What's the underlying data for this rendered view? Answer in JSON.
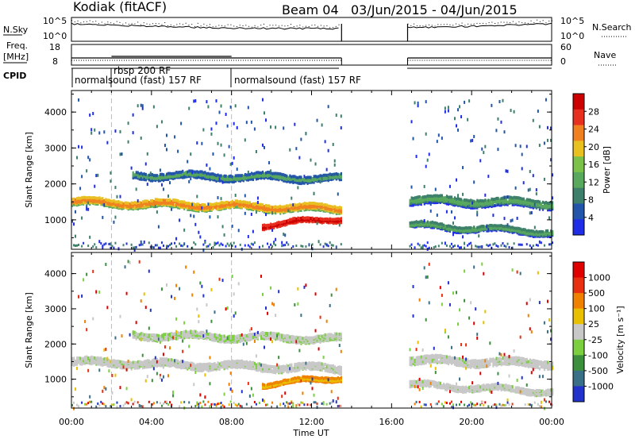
{
  "header": {
    "radar": "Kodiak (fitACF)",
    "beam": "Beam 04",
    "date_range": "03/Jun/2015 - 04/Jun/2015"
  },
  "top_panels": {
    "noise_left_label": "N.Sky",
    "noise_right_label": "N.Search",
    "noise_left_ticks": [
      "10^5",
      "10^0"
    ],
    "noise_right_ticks": [
      "10^5",
      "10^0"
    ],
    "freq_label_line1": "Freq.",
    "freq_label_line2": "[MHz]",
    "freq_left_ticks": [
      "18",
      "8"
    ],
    "freq_right_ticks": [
      "60",
      "0"
    ],
    "nave_label": "Nave",
    "cpid_label": "CPID",
    "cpid_programs": [
      {
        "text": "normalsound (fast) 157 RF",
        "row": 1
      },
      {
        "text": "rbsp 200 RF",
        "row": 0
      },
      {
        "text": "normalsound (fast) 157 RF",
        "row": 1
      }
    ]
  },
  "power_panel": {
    "ylabel": "Slant Range [km]",
    "yticks": [
      "4000",
      "3000",
      "2000",
      "1000"
    ],
    "colorbar_label": "Power [dB]",
    "colorbar_ticks": [
      "28",
      "24",
      "20",
      "16",
      "12",
      "8",
      "4"
    ],
    "colors": [
      "#1f2ee6",
      "#2255aa",
      "#3d7f6b",
      "#58a85e",
      "#7cc24a",
      "#e8c020",
      "#f08020",
      "#e83020",
      "#cc0000"
    ]
  },
  "velocity_panel": {
    "ylabel": "Slant Range [km]",
    "yticks": [
      "4000",
      "3000",
      "2000",
      "1000"
    ],
    "colorbar_label": "Velocity [m s⁻¹]",
    "colorbar_ticks": [
      "1000",
      "500",
      "100",
      "25",
      "-25",
      "-100",
      "-500",
      "-1000"
    ],
    "colors": [
      "#2233cc",
      "#3a6f88",
      "#3c8f3c",
      "#7cd040",
      "#c8c8c8",
      "#e8c000",
      "#f08000",
      "#e83010",
      "#e00000"
    ]
  },
  "x_axis": {
    "label": "Time UT",
    "ticks": [
      "00:00",
      "04:00",
      "08:00",
      "12:00",
      "16:00",
      "20:00",
      "00:00"
    ]
  },
  "chart_data": {
    "type": "heatmap",
    "title": "Kodiak (fitACF) Beam 04 03/Jun/2015 - 04/Jun/2015",
    "xlabel": "Time UT",
    "ylabel": "Slant Range [km]",
    "xlim_hours": [
      0,
      24
    ],
    "ylim_km": [
      180,
      4600
    ],
    "data_gap_hours": [
      13.5,
      16.8
    ],
    "cpid_switch_hours": [
      2.0,
      8.0
    ],
    "scatter_bands_power": [
      {
        "t0": 0.0,
        "t1": 13.5,
        "km_start": 1550,
        "km_end": 1350,
        "width_km": 200,
        "level_db": 20
      },
      {
        "t0": 9.5,
        "t1": 13.5,
        "km_start": 900,
        "km_end": 1100,
        "width_km": 120,
        "level_db": 28
      },
      {
        "t0": 16.8,
        "t1": 24.0,
        "km_start": 1600,
        "km_end": 1500,
        "width_km": 220,
        "level_db": 12
      },
      {
        "t0": 16.8,
        "t1": 24.0,
        "km_start": 900,
        "km_end": 700,
        "width_km": 150,
        "level_db": 12
      },
      {
        "t0": 3.0,
        "t1": 13.5,
        "km_start": 2300,
        "km_end": 2200,
        "width_km": 180,
        "level_db": 10
      }
    ],
    "power_colorbar_db": [
      4,
      8,
      12,
      16,
      20,
      24,
      28
    ],
    "velocity_colorbar_ms": [
      -1000,
      -500,
      -100,
      -25,
      25,
      100,
      500,
      1000
    ]
  }
}
